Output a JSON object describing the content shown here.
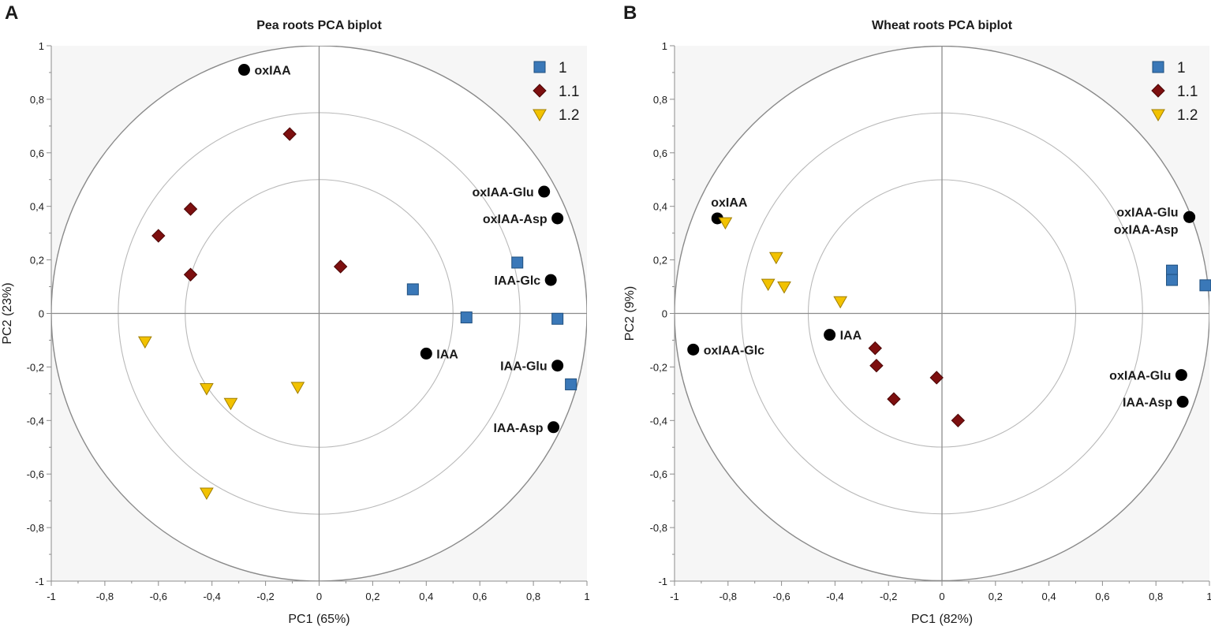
{
  "colors": {
    "plot_bg": "#f6f6f6",
    "circle_fill": "#ffffff",
    "outer_ring": "#8a8a8a",
    "inner_ring": "#b9b9b9",
    "axis_line": "#8c8c8c",
    "series_1": "#3a78b8",
    "series_1_1": "#7d0f0f",
    "series_1_2": "#f2c200",
    "variable_point": "#000000",
    "text": "#1a1a1a"
  },
  "chart_data": [
    {
      "panel_label": "A",
      "type": "scatter",
      "title": "Pea roots PCA biplot",
      "xlabel": "PC1 (65%)",
      "ylabel": "PC2 (23%)",
      "xlim": [
        -1,
        1
      ],
      "ylim": [
        -1,
        1
      ],
      "circles": [
        0.5,
        0.75,
        1.0
      ],
      "x_ticks": [
        -1,
        -0.8,
        -0.6,
        -0.4,
        -0.2,
        0,
        0.2,
        0.4,
        0.6,
        0.8,
        1
      ],
      "x_tick_labels": [
        "-1",
        "-0,8",
        "-0,6",
        "-0,4",
        "-0,2",
        "0",
        "0,2",
        "0,4",
        "0,6",
        "0,8",
        "1"
      ],
      "y_ticks": [
        1,
        0.8,
        0.6,
        0.4,
        0.2,
        0,
        -0.2,
        -0.4,
        -0.6,
        -0.8,
        -1
      ],
      "y_tick_labels": [
        "1",
        "0,8",
        "0,6",
        "0,4",
        "0,2",
        "0",
        "-0,2",
        "-0,4",
        "-0,6",
        "-0,8",
        "-1"
      ],
      "legend_position": "top-right",
      "series": [
        {
          "name": "1",
          "marker": "square",
          "color": "#3a78b8",
          "points": [
            [
              0.35,
              0.09
            ],
            [
              0.55,
              -0.015
            ],
            [
              0.74,
              0.19
            ],
            [
              0.89,
              -0.02
            ],
            [
              0.94,
              -0.265
            ]
          ]
        },
        {
          "name": "1.1",
          "marker": "diamond",
          "color": "#7d0f0f",
          "points": [
            [
              -0.11,
              0.67
            ],
            [
              -0.48,
              0.39
            ],
            [
              -0.6,
              0.29
            ],
            [
              -0.48,
              0.145
            ],
            [
              0.08,
              0.175
            ]
          ]
        },
        {
          "name": "1.2",
          "marker": "triangle-down",
          "color": "#f2c200",
          "points": [
            [
              -0.65,
              -0.105
            ],
            [
              -0.42,
              -0.28
            ],
            [
              -0.33,
              -0.335
            ],
            [
              -0.08,
              -0.275
            ],
            [
              -0.42,
              -0.67
            ]
          ]
        }
      ],
      "variables": [
        {
          "name": "oxIAA",
          "x": -0.28,
          "y": 0.91,
          "label_side": "right"
        },
        {
          "name": "oxIAA-Glu",
          "x": 0.84,
          "y": 0.455,
          "label_side": "left"
        },
        {
          "name": "oxIAA-Asp",
          "x": 0.89,
          "y": 0.355,
          "label_side": "left"
        },
        {
          "name": "IAA-Glc",
          "x": 0.865,
          "y": 0.125,
          "label_side": "left"
        },
        {
          "name": "IAA",
          "x": 0.4,
          "y": -0.15,
          "label_side": "right"
        },
        {
          "name": "IAA-Glu",
          "x": 0.89,
          "y": -0.195,
          "label_side": "left"
        },
        {
          "name": "IAA-Asp",
          "x": 0.875,
          "y": -0.425,
          "label_side": "left"
        }
      ]
    },
    {
      "panel_label": "B",
      "type": "scatter",
      "title": "Wheat roots PCA biplot",
      "xlabel": "PC1 (82%)",
      "ylabel": "PC2 (9%)",
      "xlim": [
        -1,
        1
      ],
      "ylim": [
        -1,
        1
      ],
      "circles": [
        0.5,
        0.75,
        1.0
      ],
      "x_ticks": [
        -1,
        -0.8,
        -0.6,
        -0.4,
        -0.2,
        0,
        0.2,
        0.4,
        0.6,
        0.8,
        1
      ],
      "x_tick_labels": [
        "-1",
        "-0,8",
        "-0,6",
        "-0,4",
        "-0,2",
        "0",
        "0,2",
        "0,4",
        "0,6",
        "0,8",
        "1"
      ],
      "y_ticks": [
        1,
        0.8,
        0.6,
        0.4,
        0.2,
        0,
        -0.2,
        -0.4,
        -0.6,
        -0.8,
        -1
      ],
      "y_tick_labels": [
        "1",
        "0,8",
        "0,6",
        "0,4",
        "0,2",
        "0",
        "-0,2",
        "-0,4",
        "-0,6",
        "-0,8",
        "-1"
      ],
      "legend_position": "top-right",
      "series": [
        {
          "name": "1",
          "marker": "square",
          "color": "#3a78b8",
          "points": [
            [
              0.86,
              0.16
            ],
            [
              0.86,
              0.125
            ],
            [
              0.985,
              0.105
            ]
          ]
        },
        {
          "name": "1.1",
          "marker": "diamond",
          "color": "#7d0f0f",
          "points": [
            [
              -0.25,
              -0.13
            ],
            [
              -0.245,
              -0.195
            ],
            [
              -0.18,
              -0.32
            ],
            [
              -0.02,
              -0.24
            ],
            [
              0.06,
              -0.4
            ]
          ]
        },
        {
          "name": "1.2",
          "marker": "triangle-down",
          "color": "#f2c200",
          "points": [
            [
              -0.81,
              0.34
            ],
            [
              -0.62,
              0.21
            ],
            [
              -0.65,
              0.11
            ],
            [
              -0.59,
              0.1
            ],
            [
              -0.38,
              0.045
            ]
          ]
        }
      ],
      "variables": [
        {
          "name": "oxIAA",
          "x": -0.84,
          "y": 0.355,
          "label_side": "above"
        },
        {
          "name": "oxIAA-Glu",
          "x": 0.925,
          "y": 0.36,
          "label_side": "left-upper"
        },
        {
          "name": "oxIAA-Asp",
          "x": 0.925,
          "y": 0.36,
          "label_side": "left-lower"
        },
        {
          "name": "oxIAA-Glc",
          "x": -0.93,
          "y": -0.135,
          "label_side": "right"
        },
        {
          "name": "IAA",
          "x": -0.42,
          "y": -0.08,
          "label_side": "right"
        },
        {
          "name": "oxIAA-Glu",
          "x": 0.895,
          "y": -0.23,
          "label_side": "left"
        },
        {
          "name": "IAA-Asp",
          "x": 0.9,
          "y": -0.33,
          "label_side": "left"
        }
      ]
    }
  ]
}
